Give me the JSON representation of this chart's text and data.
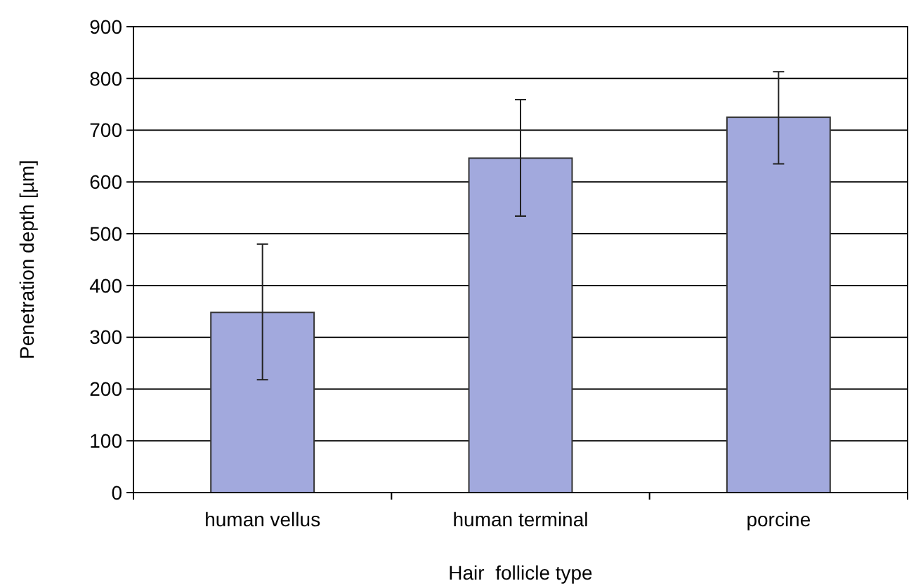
{
  "chart_data": {
    "type": "bar",
    "xlabel": "Hair  follicle type",
    "ylabel": "Penetration depth [µm]",
    "categories": [
      "human vellus",
      "human terminal",
      "porcine"
    ],
    "values": [
      348,
      646,
      725
    ],
    "errors": [
      [
        218,
        480
      ],
      [
        534,
        759
      ],
      [
        635,
        813
      ]
    ],
    "color": "#a2a9dd",
    "ylim": [
      0,
      900
    ],
    "yticks": [
      0,
      100,
      200,
      300,
      400,
      500,
      600,
      700,
      800,
      900
    ],
    "grid": "y"
  }
}
